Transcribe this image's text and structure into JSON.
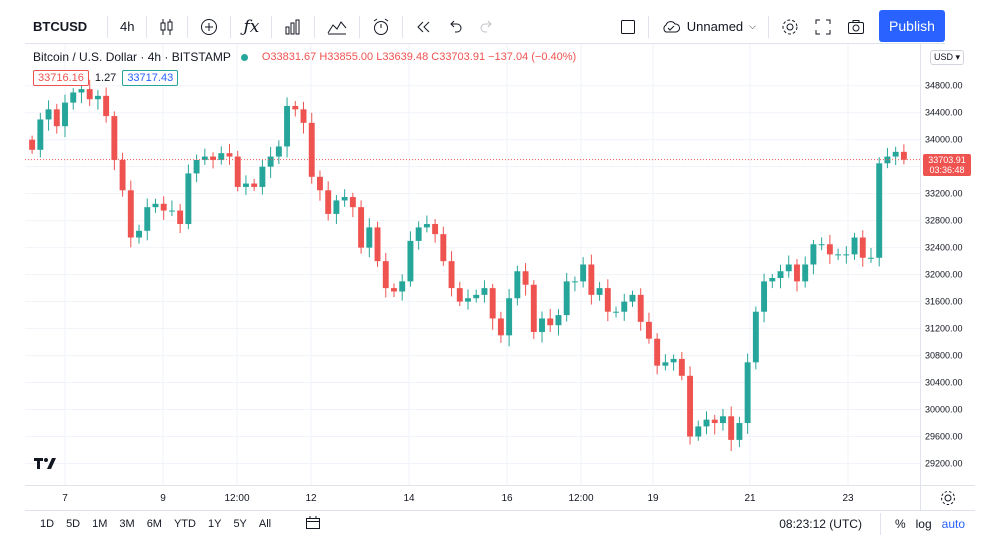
{
  "toolbar": {
    "symbol": "BTCUSD",
    "interval": "4h",
    "layout_name": "Unnamed",
    "publish_label": "Publish",
    "icons": [
      "candles-icon",
      "add-compare-icon",
      "indicators-icon",
      "templates-icon",
      "compare-icon",
      "alert-icon",
      "replay-icon",
      "undo-icon",
      "redo-icon",
      "layout-icon",
      "settings-icon",
      "fullscreen-icon",
      "camera-icon"
    ]
  },
  "legend": {
    "title": "Bitcoin / U.S. Dollar · 4h · BITSTAMP",
    "ohlc": "O33831.67  H33855.00  L33639.48  C33703.91  −137.04 (−0.40%)",
    "bid": "33716.16",
    "spread": "1.27",
    "ask": "33717.43",
    "currency": "USD"
  },
  "last_price": {
    "value": "33703.91",
    "countdown": "03:36:48"
  },
  "colors": {
    "up": "#26a69a",
    "down": "#ef5350",
    "accent": "#2962ff",
    "grid": "#f0f3fa"
  },
  "chart_data": {
    "type": "candlestick",
    "y_ticks": [
      "34800.00",
      "34400.00",
      "34000.00",
      "33600.00",
      "33200.00",
      "32800.00",
      "32400.00",
      "32000.00",
      "31600.00",
      "31200.00",
      "30800.00",
      "30400.00",
      "30000.00",
      "29600.00",
      "29200.00"
    ],
    "x_ticks": [
      "7",
      "9",
      "12:00",
      "12",
      "14",
      "16",
      "12:00",
      "19",
      "21",
      "23"
    ],
    "ylim": [
      29000,
      35300
    ],
    "series": [
      {
        "name": "BTCUSD",
        "closes": [
          33850,
          34300,
          34450,
          34200,
          34550,
          34700,
          34750,
          34600,
          34650,
          34350,
          33700,
          33250,
          32550,
          32650,
          33000,
          33050,
          32950,
          32950,
          32750,
          33500,
          33700,
          33750,
          33700,
          33800,
          33750,
          33300,
          33350,
          33300,
          33600,
          33750,
          33900,
          34500,
          34450,
          34250,
          33450,
          33250,
          32900,
          33100,
          33150,
          33000,
          32400,
          32700,
          32200,
          31800,
          31750,
          31900,
          32500,
          32700,
          32750,
          32600,
          32200,
          31800,
          31600,
          31650,
          31700,
          31800,
          31350,
          31100,
          31650,
          32050,
          31850,
          31150,
          31350,
          31250,
          31400,
          31900,
          31900,
          32150,
          31700,
          31800,
          31450,
          31450,
          31600,
          31700,
          31300,
          31050,
          30650,
          30700,
          30750,
          30500,
          29600,
          29750,
          29850,
          29800,
          29900,
          29550,
          29800,
          30700,
          31450,
          31900,
          31950,
          32050,
          32150,
          31900,
          32150,
          32450,
          32450,
          32300,
          32300,
          32300,
          32550,
          32250,
          32250,
          33650,
          33750,
          33820,
          33703
        ]
      }
    ],
    "xlabel": "",
    "ylabel": ""
  },
  "bottom": {
    "ranges": [
      "1D",
      "5D",
      "1M",
      "3M",
      "6M",
      "YTD",
      "1Y",
      "5Y",
      "All"
    ],
    "clock": "08:23:12 (UTC)",
    "percent": "%",
    "log": "log",
    "auto": "auto"
  }
}
